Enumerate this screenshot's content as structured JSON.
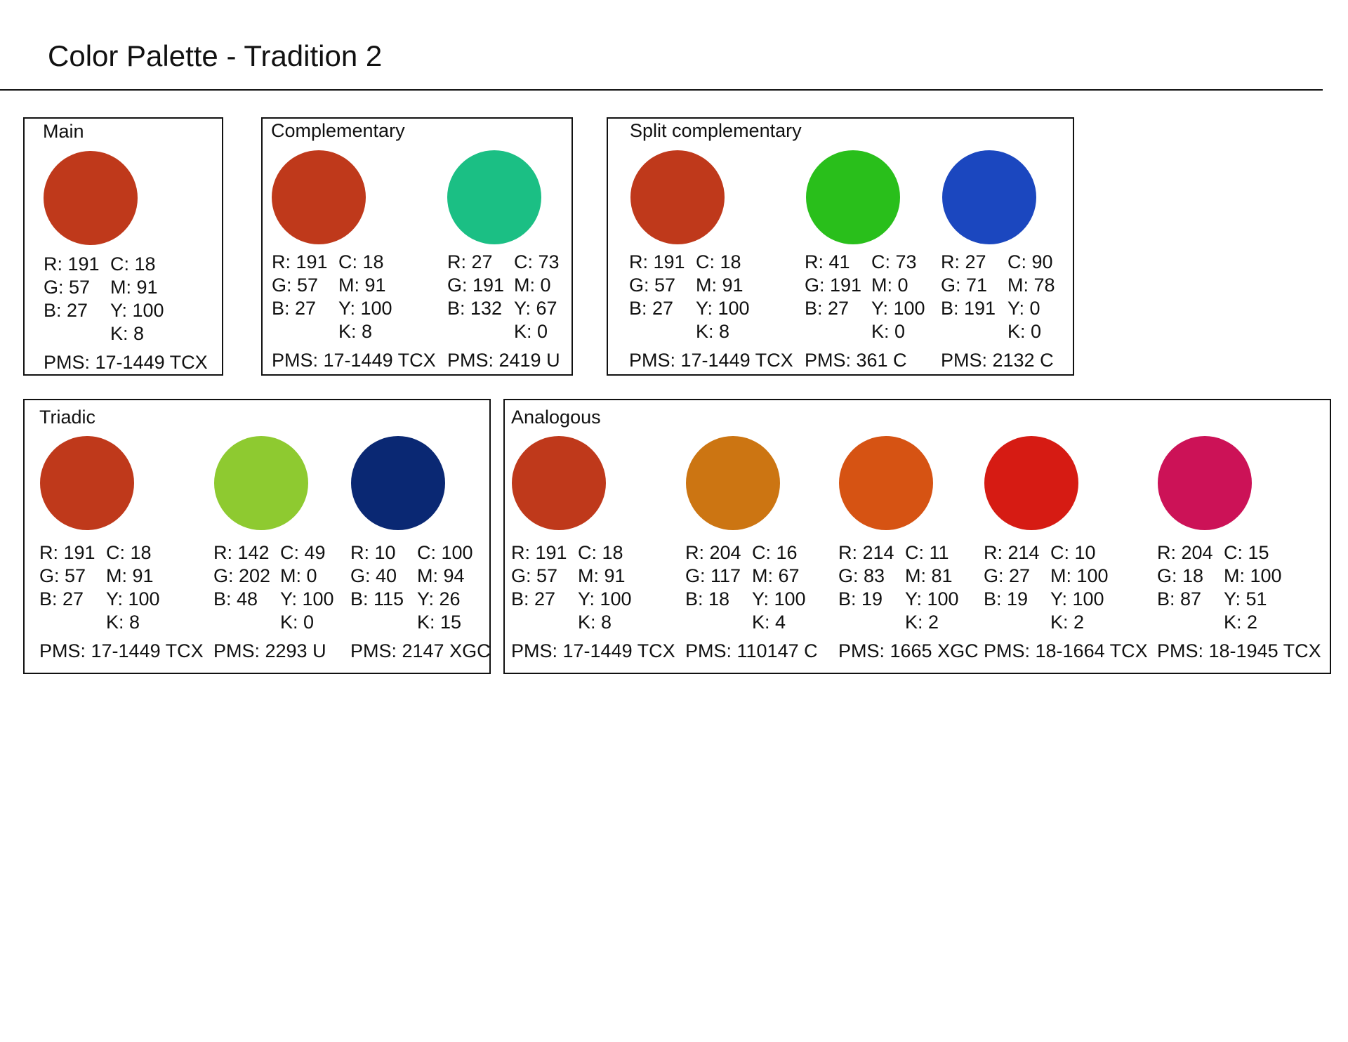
{
  "title": "Color Palette - Tradition 2",
  "groups": [
    {
      "label": "Main",
      "colors": [
        {
          "hex": "#BF391B",
          "r": "R: 191",
          "g": "G: 57",
          "b": "B: 27",
          "c": "C: 18",
          "m": "M: 91",
          "y": "Y: 100",
          "k": "K: 8",
          "pms": "PMS: 17-1449 TCX"
        }
      ]
    },
    {
      "label": "Complementary",
      "colors": [
        {
          "hex": "#BF391B",
          "r": "R: 191",
          "g": "G: 57",
          "b": "B: 27",
          "c": "C: 18",
          "m": "M: 91",
          "y": "Y: 100",
          "k": "K: 8",
          "pms": "PMS: 17-1449 TCX"
        },
        {
          "hex": "#1BBF84",
          "r": "R: 27",
          "g": "G: 191",
          "b": "B: 132",
          "c": "C: 73",
          "m": "M: 0",
          "y": "Y: 67",
          "k": "K: 0",
          "pms": "PMS: 2419 U"
        }
      ]
    },
    {
      "label": "Split complementary",
      "colors": [
        {
          "hex": "#BF391B",
          "r": "R: 191",
          "g": "G: 57",
          "b": "B: 27",
          "c": "C: 18",
          "m": "M: 91",
          "y": "Y: 100",
          "k": "K: 8",
          "pms": "PMS: 17-1449 TCX"
        },
        {
          "hex": "#29BF1B",
          "r": "R: 41",
          "g": "G: 191",
          "b": "B: 27",
          "c": "C: 73",
          "m": "M: 0",
          "y": "Y: 100",
          "k": "K: 0",
          "pms": "PMS: 361 C"
        },
        {
          "hex": "#1B47BF",
          "r": "R: 27",
          "g": "G: 71",
          "b": "B: 191",
          "c": "C: 90",
          "m": "M: 78",
          "y": "Y: 0",
          "k": "K: 0",
          "pms": "PMS: 2132 C"
        }
      ]
    },
    {
      "label": "Triadic",
      "colors": [
        {
          "hex": "#BF391B",
          "r": "R: 191",
          "g": "G: 57",
          "b": "B: 27",
          "c": "C: 18",
          "m": "M: 91",
          "y": "Y: 100",
          "k": "K: 8",
          "pms": "PMS: 17-1449 TCX"
        },
        {
          "hex": "#8ECA30",
          "r": "R: 142",
          "g": "G: 202",
          "b": "B: 48",
          "c": "C: 49",
          "m": "M: 0",
          "y": "Y: 100",
          "k": "K: 0",
          "pms": "PMS: 2293 U"
        },
        {
          "hex": "#0A2873",
          "r": "R: 10",
          "g": "G: 40",
          "b": "B: 115",
          "c": "C: 100",
          "m": "M: 94",
          "y": "Y: 26",
          "k": "K: 15",
          "pms": "PMS: 2147 XGC"
        }
      ]
    },
    {
      "label": "Analogous",
      "colors": [
        {
          "hex": "#BF391B",
          "r": "R: 191",
          "g": "G: 57",
          "b": "B: 27",
          "c": "C: 18",
          "m": "M: 91",
          "y": "Y: 100",
          "k": "K: 8",
          "pms": "PMS: 17-1449 TCX"
        },
        {
          "hex": "#CC7512",
          "r": "R: 204",
          "g": "G: 117",
          "b": "B: 18",
          "c": "C: 16",
          "m": "M: 67",
          "y": "Y: 100",
          "k": "K: 4",
          "pms": "PMS: 110147 C"
        },
        {
          "hex": "#D65313",
          "r": "R: 214",
          "g": "G: 83",
          "b": "B: 19",
          "c": "C: 11",
          "m": "M: 81",
          "y": "Y: 100",
          "k": "K: 2",
          "pms": "PMS: 1665 XGC"
        },
        {
          "hex": "#D61B13",
          "r": "R: 214",
          "g": "G: 27",
          "b": "B: 19",
          "c": "C: 10",
          "m": "M: 100",
          "y": "Y: 100",
          "k": "K: 2",
          "pms": "PMS: 18-1664 TCX"
        },
        {
          "hex": "#CC1257",
          "r": "R: 204",
          "g": "G: 18",
          "b": "B: 87",
          "c": "C: 15",
          "m": "M: 100",
          "y": "Y: 51",
          "k": "K: 2",
          "pms": "PMS: 18-1945 TCX"
        }
      ]
    }
  ]
}
